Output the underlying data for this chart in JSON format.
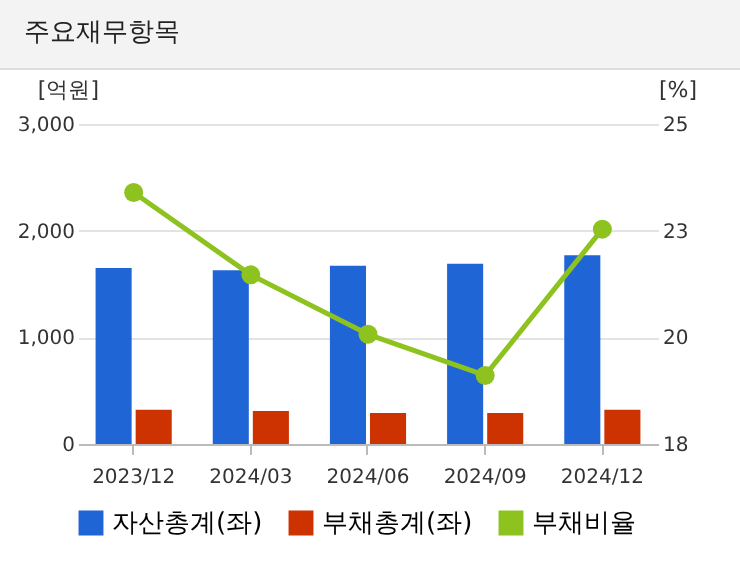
{
  "chart_data": {
    "type": "bar",
    "title": "주요재무항목",
    "ylabel": "[억원]",
    "y2label": "[%]",
    "categories": [
      "2023/12",
      "2024/03",
      "2024/06",
      "2024/09",
      "2024/12"
    ],
    "series": [
      {
        "name": "자산총계(좌)",
        "color": "#1f65d6",
        "values": [
          1650,
          1630,
          1670,
          1690,
          1770
        ]
      },
      {
        "name": "부채총계(좌)",
        "color": "#cc3300",
        "values": [
          320,
          310,
          290,
          290,
          320
        ]
      },
      {
        "name": "부채비율",
        "color": "#8dc21f",
        "type": "line",
        "axis": "y2",
        "marker": "circle",
        "values": [
          23.5,
          21.7,
          20.4,
          19.5,
          22.7
        ]
      }
    ],
    "ylim": [
      0,
      3000
    ],
    "yticks": [
      0,
      {
        "value": 1000,
        "label": "1,000"
      },
      {
        "value": 2000,
        "label": "2,000"
      },
      {
        "value": 3000,
        "label": "3,000"
      }
    ],
    "y2lim": [
      18,
      25
    ],
    "y2ticks": [
      18,
      {
        "value": 20.33,
        "label": "20"
      },
      {
        "value": 22.67,
        "label": "23"
      },
      25
    ],
    "grid": "y",
    "legend": "bottom"
  }
}
